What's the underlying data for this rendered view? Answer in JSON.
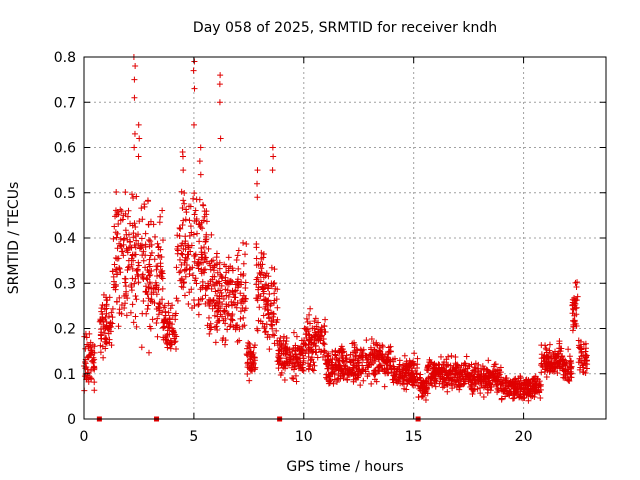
{
  "chart_data": {
    "type": "scatter",
    "title": "Day 058 of 2025, SRMTID for receiver kndh",
    "xlabel": "GPS time / hours",
    "ylabel": "SRMTID / TECUs",
    "xlim": [
      0,
      23.75
    ],
    "ylim": [
      0,
      0.8
    ],
    "xticks": [
      0,
      5,
      10,
      15,
      20
    ],
    "xtick_labels": [
      "0",
      "5",
      "10",
      "15",
      "20"
    ],
    "yticks": [
      0,
      0.1,
      0.2,
      0.3,
      0.4,
      0.5,
      0.6,
      0.7,
      0.8
    ],
    "ytick_labels": [
      "0",
      "0.1",
      "0.2",
      "0.3",
      "0.4",
      "0.5",
      "0.6",
      "0.7",
      "0.8"
    ],
    "grid": true,
    "marker": "+",
    "color": "#e00000",
    "segments": [
      {
        "start": 0.0,
        "end": 0.5,
        "base": 0.13,
        "spread": 0.05
      },
      {
        "start": 0.7,
        "end": 1.3,
        "base": 0.2,
        "spread": 0.06
      },
      {
        "start": 1.3,
        "end": 3.0,
        "base": 0.34,
        "spread": 0.14
      },
      {
        "start": 3.0,
        "end": 3.6,
        "base": 0.3,
        "spread": 0.12
      },
      {
        "start": 3.6,
        "end": 4.2,
        "base": 0.2,
        "spread": 0.05
      },
      {
        "start": 4.2,
        "end": 5.6,
        "base": 0.37,
        "spread": 0.12
      },
      {
        "start": 5.6,
        "end": 6.0,
        "base": 0.3,
        "spread": 0.1
      },
      {
        "start": 6.0,
        "end": 7.4,
        "base": 0.27,
        "spread": 0.09
      },
      {
        "start": 7.4,
        "end": 7.8,
        "base": 0.13,
        "spread": 0.04
      },
      {
        "start": 7.8,
        "end": 8.2,
        "base": 0.3,
        "spread": 0.11
      },
      {
        "start": 8.2,
        "end": 8.8,
        "base": 0.24,
        "spread": 0.09
      },
      {
        "start": 8.8,
        "end": 10.0,
        "base": 0.14,
        "spread": 0.04
      },
      {
        "start": 10.0,
        "end": 11.0,
        "base": 0.17,
        "spread": 0.05
      },
      {
        "start": 11.0,
        "end": 13.0,
        "base": 0.12,
        "spread": 0.04
      },
      {
        "start": 13.0,
        "end": 14.0,
        "base": 0.13,
        "spread": 0.04
      },
      {
        "start": 14.0,
        "end": 15.2,
        "base": 0.1,
        "spread": 0.03
      },
      {
        "start": 15.2,
        "end": 15.6,
        "base": 0.07,
        "spread": 0.03
      },
      {
        "start": 15.6,
        "end": 17.5,
        "base": 0.1,
        "spread": 0.03
      },
      {
        "start": 17.5,
        "end": 19.0,
        "base": 0.09,
        "spread": 0.03
      },
      {
        "start": 19.0,
        "end": 20.8,
        "base": 0.07,
        "spread": 0.025
      },
      {
        "start": 20.8,
        "end": 21.8,
        "base": 0.13,
        "spread": 0.03
      },
      {
        "start": 21.8,
        "end": 22.2,
        "base": 0.11,
        "spread": 0.03
      },
      {
        "start": 22.2,
        "end": 22.5,
        "base": 0.24,
        "spread": 0.06
      },
      {
        "start": 22.5,
        "end": 22.9,
        "base": 0.14,
        "spread": 0.04
      }
    ],
    "spikes": [
      {
        "x": 2.3,
        "values": [
          0.8,
          0.78,
          0.75,
          0.71,
          0.63,
          0.6
        ]
      },
      {
        "x": 2.5,
        "values": [
          0.65,
          0.62,
          0.58
        ]
      },
      {
        "x": 4.5,
        "values": [
          0.59,
          0.58,
          0.55
        ]
      },
      {
        "x": 5.0,
        "values": [
          0.79,
          0.77,
          0.73,
          0.65
        ]
      },
      {
        "x": 5.3,
        "values": [
          0.6,
          0.57,
          0.54
        ]
      },
      {
        "x": 6.2,
        "values": [
          0.76,
          0.74,
          0.7,
          0.62
        ]
      },
      {
        "x": 7.9,
        "values": [
          0.55,
          0.52,
          0.49
        ]
      },
      {
        "x": 8.6,
        "values": [
          0.6,
          0.58,
          0.55
        ]
      }
    ],
    "baseline_markers": [
      0.7,
      3.3,
      8.9,
      15.2
    ]
  }
}
